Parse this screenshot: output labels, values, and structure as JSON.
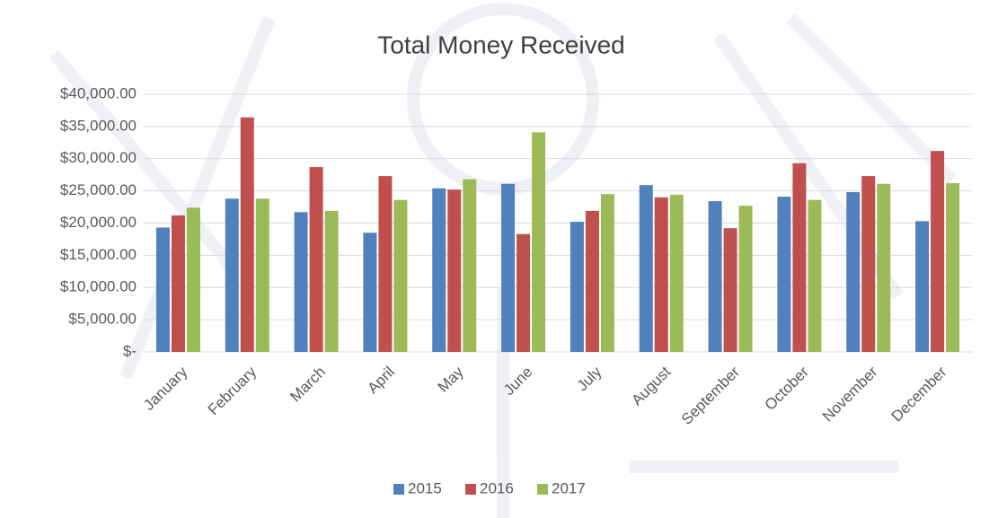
{
  "chart_data": {
    "type": "bar",
    "title": "Total Money Received",
    "categories": [
      "January",
      "February",
      "March",
      "April",
      "May",
      "June",
      "July",
      "August",
      "September",
      "October",
      "November",
      "December"
    ],
    "series": [
      {
        "name": "2015",
        "color": "#4f81bd",
        "values": [
          19300,
          23800,
          21700,
          18500,
          25400,
          26100,
          20200,
          25900,
          23400,
          24100,
          24800,
          20300
        ]
      },
      {
        "name": "2016",
        "color": "#c0504d",
        "values": [
          21200,
          36400,
          28700,
          27300,
          25200,
          18300,
          21900,
          24000,
          19200,
          29300,
          27300,
          31200
        ]
      },
      {
        "name": "2017",
        "color": "#9bbb59",
        "values": [
          22400,
          23800,
          21900,
          23600,
          26800,
          34100,
          24500,
          24400,
          22700,
          23600,
          26100,
          26200
        ]
      }
    ],
    "ylim": [
      0,
      40000
    ],
    "yticks": [
      {
        "value": 0,
        "label": "$-"
      },
      {
        "value": 5000,
        "label": "$5,000.00"
      },
      {
        "value": 10000,
        "label": "$10,000.00"
      },
      {
        "value": 15000,
        "label": "$15,000.00"
      },
      {
        "value": 20000,
        "label": "$20,000.00"
      },
      {
        "value": 25000,
        "label": "$25,000.00"
      },
      {
        "value": 30000,
        "label": "$30,000.00"
      },
      {
        "value": 35000,
        "label": "$35,000.00"
      },
      {
        "value": 40000,
        "label": "$40,000.00"
      }
    ],
    "grid": true,
    "legend": "bottom"
  }
}
